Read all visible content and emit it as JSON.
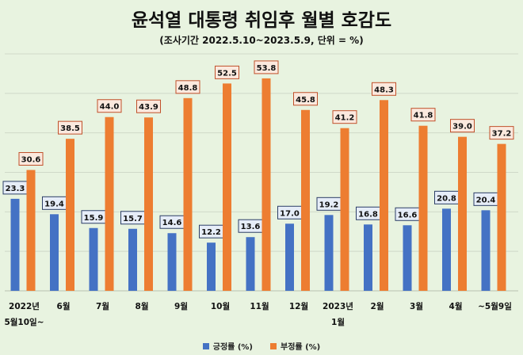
{
  "chart_data": {
    "type": "bar",
    "title": "윤석열 대통령 취임후 월별 호감도",
    "subtitle": "(조사기간 2022.5.10~2023.5.9, 단위 = %)",
    "categories": [
      [
        "2022년",
        "5월10일~"
      ],
      [
        "6월"
      ],
      [
        "7월"
      ],
      [
        "8월"
      ],
      [
        "9월"
      ],
      [
        "10월"
      ],
      [
        "11월"
      ],
      [
        "12월"
      ],
      [
        "2023년",
        "1월"
      ],
      [
        "2월"
      ],
      [
        "3월"
      ],
      [
        "4월"
      ],
      [
        "~5월9일"
      ]
    ],
    "series": [
      {
        "name": "긍정률 (%)",
        "color": "#4472c4",
        "values": [
          23.3,
          19.4,
          15.9,
          15.7,
          14.6,
          12.2,
          13.6,
          17.0,
          19.2,
          16.8,
          16.6,
          20.8,
          20.4
        ]
      },
      {
        "name": "부정률 (%)",
        "color": "#ed7d31",
        "values": [
          30.6,
          38.5,
          44.0,
          43.9,
          48.8,
          52.5,
          53.8,
          45.8,
          41.2,
          48.3,
          41.8,
          39.0,
          37.2
        ]
      }
    ],
    "ylim": [
      0,
      60
    ],
    "grid": true,
    "legend": "bottom"
  }
}
